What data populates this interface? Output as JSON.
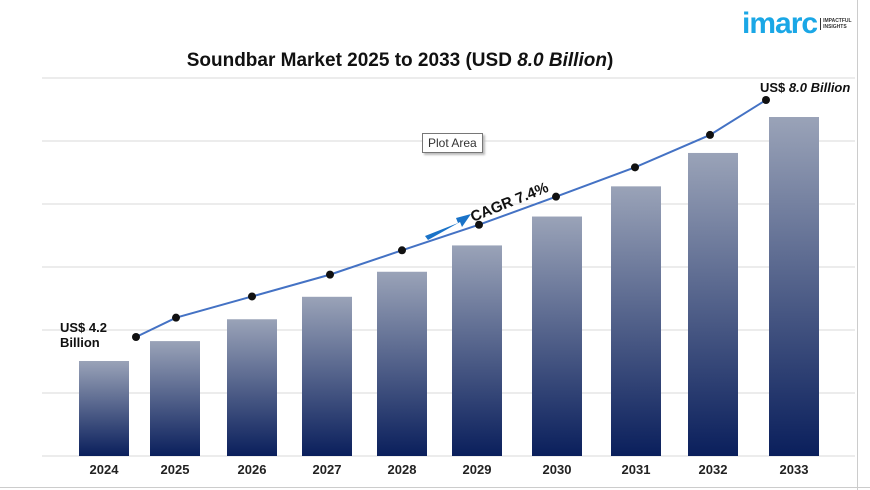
{
  "chart_data": {
    "type": "bar",
    "title": "Soundbar Market 2025 to 2033 (USD ",
    "title_value": "8.0 Billion",
    "title_suffix": ")",
    "categories": [
      "2024",
      "2025",
      "2026",
      "2027",
      "2028",
      "2029",
      "2030",
      "2031",
      "2032",
      "2033"
    ],
    "series": [
      {
        "values": [
          4.2,
          4.51,
          4.85,
          5.2,
          5.59,
          6.0,
          6.45,
          6.92,
          7.44,
          8.0
        ]
      }
    ],
    "line_overlay": true,
    "annotations": {
      "start": "US$ 4.2",
      "start_unit": "Billion",
      "end": "US$ ",
      "end_value": "8.0 Billion",
      "cagr": "CAGR 7.4%"
    },
    "grid": true,
    "bar_gradient": [
      "#9aa3b8",
      "#0a1f5c"
    ],
    "line_color": "#4472c4",
    "arrow_color": "#1a73c8"
  },
  "tooltip": "Plot Area",
  "logo": {
    "word": "imarc",
    "tagline": "IMPACTFUL INSIGHTS",
    "color": "#1aa7e6"
  }
}
